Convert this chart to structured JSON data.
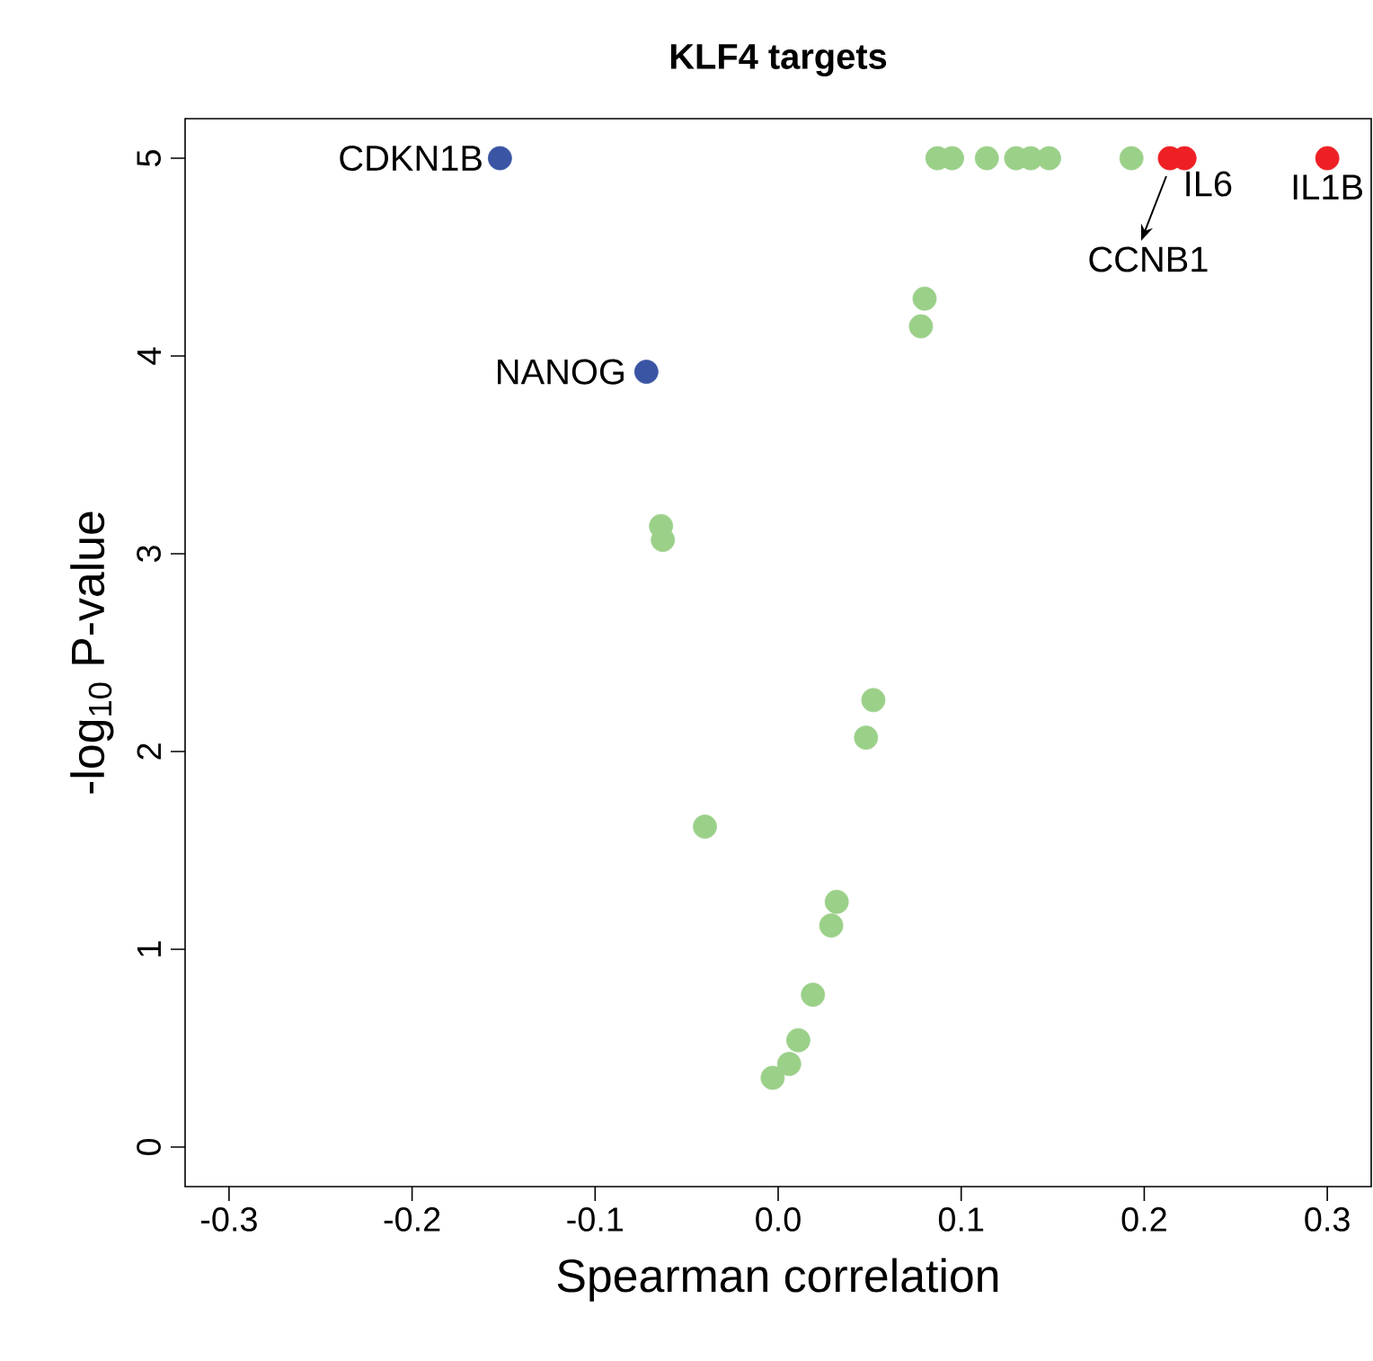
{
  "chart_data": {
    "type": "scatter",
    "title": "KLF4 targets",
    "xlabel": "Spearman correlation",
    "ylabel": "-log$_{10}$ P-value",
    "series": [
      {
        "color": "#9bd089",
        "x": [
          0.087,
          0.095,
          0.114,
          0.13,
          0.138,
          0.148,
          0.193,
          0.08,
          0.078,
          -0.064,
          -0.063,
          0.052,
          0.048,
          -0.04,
          0.032,
          0.029,
          0.019,
          0.011,
          0.006,
          -0.003
        ],
        "values": [
          5,
          5,
          5,
          5,
          5,
          5,
          5,
          4.29,
          4.15,
          3.14,
          3.07,
          2.26,
          2.07,
          1.62,
          1.24,
          1.12,
          0.77,
          0.54,
          0.42,
          0.35
        ]
      },
      {
        "color": "#3a55a4",
        "x": [
          -0.152,
          -0.072
        ],
        "values": [
          5,
          3.92
        ]
      },
      {
        "color": "#ee2024",
        "x": [
          0.214,
          0.222,
          0.3
        ],
        "values": [
          5,
          5,
          5
        ]
      }
    ],
    "annotations": [
      {
        "text": "CDKN1B",
        "x": -0.152,
        "y": 5
      },
      {
        "text": "NANOG",
        "x": -0.072,
        "y": 3.92
      },
      {
        "text": "IL6",
        "x": 0.222,
        "y": 5
      },
      {
        "text": "IL1B",
        "x": 0.3,
        "y": 5
      },
      {
        "text": "CCNB1",
        "x": 0.214,
        "y": 5
      }
    ],
    "xlim": [
      -0.324,
      0.324
    ],
    "ylim": [
      -0.2,
      5.2
    ],
    "xticks": [
      -0.3,
      -0.2,
      -0.1,
      {
        "value": 0,
        "label": "0.0"
      },
      0.1,
      0.2,
      0.3
    ],
    "yticks": [
      0,
      1,
      2,
      3,
      4,
      5
    ],
    "marker": "circle"
  }
}
